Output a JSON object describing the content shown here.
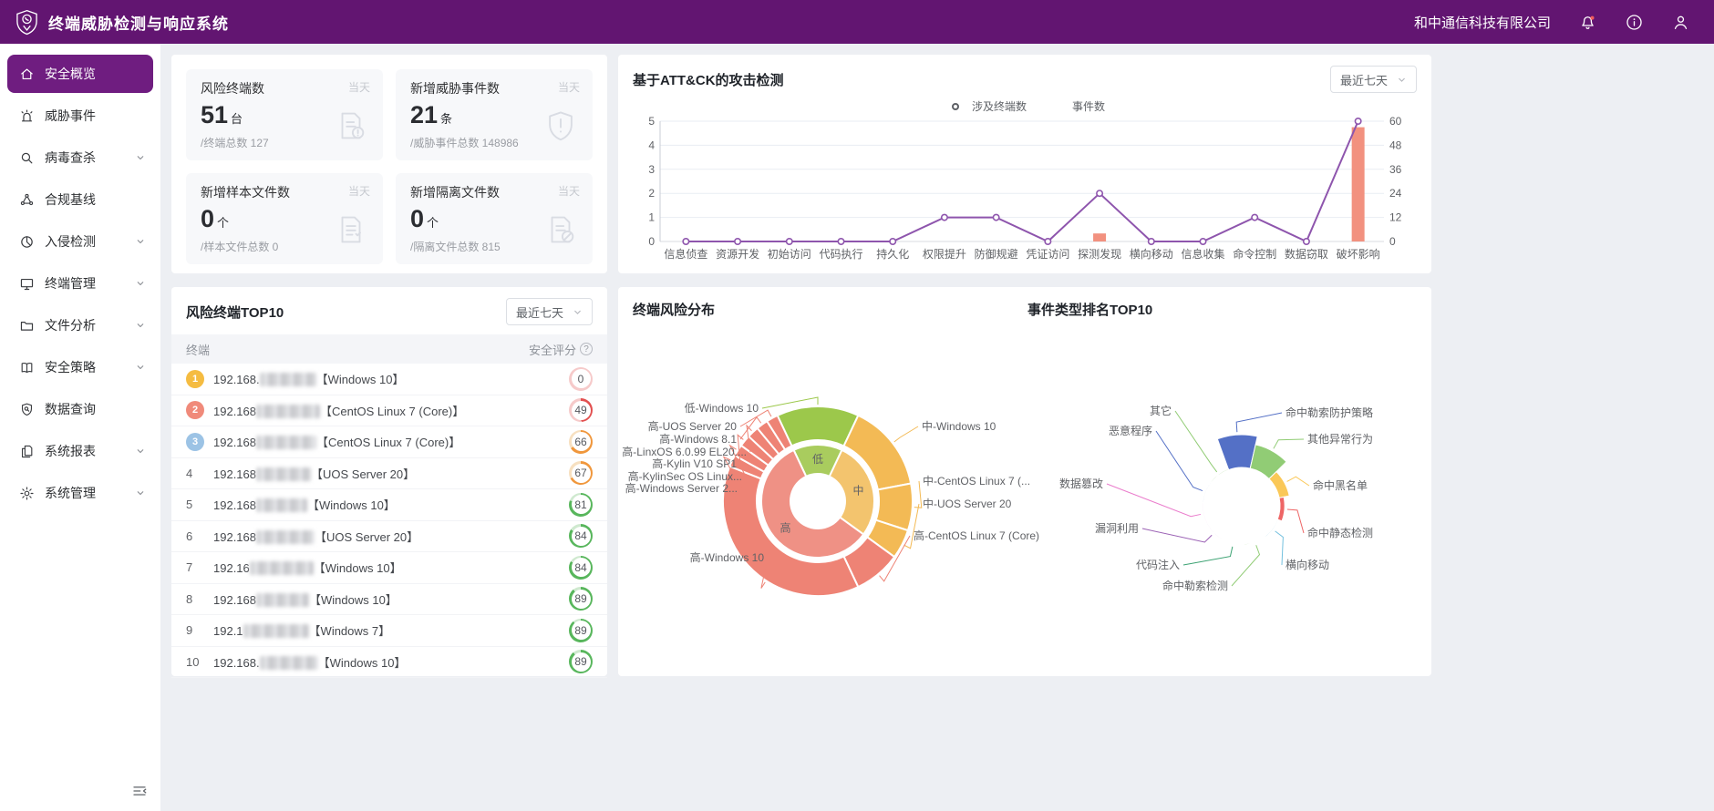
{
  "header": {
    "title": "终端威胁检测与响应系统",
    "company": "和中通信科技有限公司"
  },
  "sidebar": {
    "items": [
      {
        "label": "安全概览",
        "icon": "home",
        "active": true,
        "expandable": false
      },
      {
        "label": "威胁事件",
        "icon": "alarm",
        "active": false,
        "expandable": false
      },
      {
        "label": "病毒查杀",
        "icon": "search",
        "active": false,
        "expandable": true
      },
      {
        "label": "合规基线",
        "icon": "nodes",
        "active": false,
        "expandable": false
      },
      {
        "label": "入侵检测",
        "icon": "pie",
        "active": false,
        "expandable": true
      },
      {
        "label": "终端管理",
        "icon": "monitor",
        "active": false,
        "expandable": true
      },
      {
        "label": "文件分析",
        "icon": "folder",
        "active": false,
        "expandable": true
      },
      {
        "label": "安全策略",
        "icon": "book",
        "active": false,
        "expandable": true
      },
      {
        "label": "数据查询",
        "icon": "shield-search",
        "active": false,
        "expandable": false
      },
      {
        "label": "系统报表",
        "icon": "report",
        "active": false,
        "expandable": true
      },
      {
        "label": "系统管理",
        "icon": "gear",
        "active": false,
        "expandable": true
      }
    ]
  },
  "stats_panel": {
    "cards": [
      {
        "title": "风险终端数",
        "tag": "当天",
        "value": "51",
        "unit": "台",
        "sub": "/终端总数 127",
        "icon": "doc-alert"
      },
      {
        "title": "新增威胁事件数",
        "tag": "当天",
        "value": "21",
        "unit": "条",
        "sub": "/威胁事件总数 148986",
        "icon": "shield-alert"
      },
      {
        "title": "新增样本文件数",
        "tag": "当天",
        "value": "0",
        "unit": "个",
        "sub": "/样本文件总数 0",
        "icon": "doc-list"
      },
      {
        "title": "新增隔离文件数",
        "tag": "当天",
        "value": "0",
        "unit": "个",
        "sub": "/隔离文件总数 815",
        "icon": "doc-block"
      }
    ]
  },
  "attack_panel": {
    "title": "基于ATT&CK的攻击检测",
    "range_label": "最近七天"
  },
  "top10_panel": {
    "title": "风险终端TOP10",
    "range_label": "最近七天",
    "col_endpoint": "终端",
    "col_score": "安全评分",
    "rows": [
      {
        "rank": 1,
        "medal": "gold",
        "ip_prefix": "192.168.",
        "os": "【Windows 10】",
        "score": 0
      },
      {
        "rank": 2,
        "medal": "silver",
        "ip_prefix": "192.168",
        "os": "【CentOS Linux 7 (Core)】",
        "score": 49
      },
      {
        "rank": 3,
        "medal": "bronze",
        "ip_prefix": "192.168",
        "os": "【CentOS Linux 7 (Core)】",
        "score": 66
      },
      {
        "rank": 4,
        "medal": null,
        "ip_prefix": "192.168",
        "os": "【UOS Server 20】",
        "score": 67
      },
      {
        "rank": 5,
        "medal": null,
        "ip_prefix": "192.168",
        "os": "【Windows 10】",
        "score": 81
      },
      {
        "rank": 6,
        "medal": null,
        "ip_prefix": "192.168",
        "os": "【UOS Server 20】",
        "score": 84
      },
      {
        "rank": 7,
        "medal": null,
        "ip_prefix": "192.16",
        "os": "【Windows 10】",
        "score": 84
      },
      {
        "rank": 8,
        "medal": null,
        "ip_prefix": "192.168",
        "os": "【Windows 10】",
        "score": 89
      },
      {
        "rank": 9,
        "medal": null,
        "ip_prefix": "192.1",
        "os": "【Windows 7】",
        "score": 89
      },
      {
        "rank": 10,
        "medal": null,
        "ip_prefix": "192.168.",
        "os": "【Windows 10】",
        "score": 89
      }
    ]
  },
  "risk_panel": {
    "title": "终端风险分布"
  },
  "event_panel": {
    "title": "事件类型排名TOP10"
  },
  "colors": {
    "header_bg": "#621571",
    "sidebar_active": "#6f1d80",
    "line_purple": "#8e55ad",
    "bar_salmon": "#f2917f",
    "score_low": "#e25050",
    "score_mid": "#f0973c",
    "score_high": "#58b65c"
  },
  "chart_data": [
    {
      "id": "attack_combo",
      "type": "line+bar",
      "title": "基于ATT&CK的攻击检测",
      "categories": [
        "信息侦查",
        "资源开发",
        "初始访问",
        "代码执行",
        "持久化",
        "权限提升",
        "防御规避",
        "凭证访问",
        "探测发现",
        "横向移动",
        "信息收集",
        "命令控制",
        "数据窃取",
        "破坏影响"
      ],
      "series": [
        {
          "name": "涉及终端数",
          "type": "line",
          "axis": "left",
          "color": "#8e55ad",
          "values": [
            0,
            0,
            0,
            0,
            0,
            1,
            1,
            0,
            2,
            0,
            0,
            1,
            0,
            5
          ]
        },
        {
          "name": "事件数",
          "type": "bar",
          "axis": "right",
          "color": "#f2917f",
          "values": [
            0,
            0,
            0,
            0,
            0,
            0,
            0,
            0,
            4,
            0,
            0,
            0,
            0,
            57
          ]
        }
      ],
      "left_axis": {
        "min": 0,
        "max": 5,
        "ticks": [
          0,
          1,
          2,
          3,
          4,
          5
        ]
      },
      "right_axis": {
        "min": 0,
        "max": 60,
        "ticks": [
          0,
          12,
          24,
          36,
          48,
          60
        ]
      },
      "grid": true,
      "legend_position": "top-center"
    },
    {
      "id": "risk_distribution",
      "type": "pie",
      "variant": "sunburst",
      "title": "终端风险分布",
      "center": [
        219,
        235
      ],
      "radii": {
        "hole": 30,
        "inner_out": 62,
        "outer_in": 67,
        "outer_out": 104
      },
      "start_angle": -25.2,
      "inner": [
        {
          "name": "低",
          "value": 14,
          "color": "#a9cc5e"
        },
        {
          "name": "中",
          "value": 28,
          "color": "#f3c46e"
        },
        {
          "name": "高",
          "value": 58,
          "color": "#ef9185"
        }
      ],
      "outer": [
        {
          "name": "低-Windows 10",
          "value": 14,
          "color": "#9cc84b",
          "label": [
            154,
            133
          ],
          "side": "left"
        },
        {
          "name": "中-Windows 10",
          "value": 15,
          "color": "#f3ba55",
          "label": [
            333,
            153
          ],
          "side": "right"
        },
        {
          "name": "中-CentOS Linux 7 (...",
          "value": 8,
          "color": "#f3ba55",
          "label": [
            334,
            213
          ],
          "side": "right"
        },
        {
          "name": "中-UOS Server 20",
          "value": 5,
          "color": "#f3ba55",
          "label": [
            334,
            238
          ],
          "side": "right"
        },
        {
          "name": "高-CentOS Linux 7 (Core)",
          "value": 8,
          "color": "#ee8375",
          "label": [
            324,
            273
          ],
          "side": "right"
        },
        {
          "name": "高-Windows 10",
          "value": 38,
          "color": "#ee8375",
          "label": [
            160,
            297
          ],
          "side": "left",
          "edge": 213
        },
        {
          "name": "高-Windows Server 2...",
          "value": 2,
          "color": "#ee8375",
          "label": [
            131,
            221
          ],
          "side": "left"
        },
        {
          "name": "高-KylinSec OS Linux...",
          "value": 2,
          "color": "#ee8375",
          "label": [
            136,
            208
          ],
          "side": "left"
        },
        {
          "name": "高-Kylin V10 SP1",
          "value": 2,
          "color": "#ee8375",
          "label": [
            130,
            194
          ],
          "side": "left"
        },
        {
          "name": "高-LinxOS 6.0.99 EL20....",
          "value": 2,
          "color": "#ee8375",
          "label": [
            141,
            181
          ],
          "side": "left"
        },
        {
          "name": "高-Windows 8.1",
          "value": 2,
          "color": "#ee8375",
          "label": [
            130,
            167
          ],
          "side": "left"
        },
        {
          "name": "高-UOS Server 20",
          "value": 2,
          "color": "#ee8375",
          "label": [
            130,
            153
          ],
          "side": "left"
        }
      ]
    },
    {
      "id": "event_type_rank",
      "type": "pie",
      "variant": "rose-area",
      "title": "事件类型排名TOP10",
      "center": [
        684,
        240
      ],
      "inner_radius": 42,
      "max_radius": 78,
      "start_angle": -20,
      "items": [
        {
          "name": "命中勒索防护策略",
          "value": 35,
          "color": "#5470c6",
          "label": [
            732,
            138
          ],
          "side": "right"
        },
        {
          "name": "其他异常行为",
          "value": 26,
          "color": "#91cc75",
          "label": [
            756,
            167
          ],
          "side": "right"
        },
        {
          "name": "命中黑名单",
          "value": 11,
          "color": "#fac858",
          "label": [
            762,
            218
          ],
          "side": "right"
        },
        {
          "name": "命中静态检测",
          "value": 5,
          "color": "#ee6666",
          "label": [
            756,
            270
          ],
          "side": "right"
        },
        {
          "name": "横向移动",
          "value": 1,
          "color": "#73c0de",
          "label": [
            732,
            305
          ],
          "side": "right"
        },
        {
          "name": "命中勒索检测",
          "value": 1,
          "color": "#91cc75",
          "label": [
            669,
            328
          ],
          "side": "left"
        },
        {
          "name": "代码注入",
          "value": 1,
          "color": "#3ba272",
          "label": [
            616,
            305
          ],
          "side": "left"
        },
        {
          "name": "漏洞利用",
          "value": 1,
          "color": "#9a60b4",
          "label": [
            571,
            265
          ],
          "side": "left"
        },
        {
          "name": "数据篡改",
          "value": 1,
          "color": "#ea7ccc",
          "label": [
            532,
            216
          ],
          "side": "left"
        },
        {
          "name": "恶意程序",
          "value": 1,
          "color": "#5470c6",
          "label": [
            586,
            158
          ],
          "side": "left"
        },
        {
          "name": "其它",
          "value": 1,
          "color": "#91cc75",
          "label": [
            607,
            136
          ],
          "side": "left"
        }
      ]
    }
  ]
}
